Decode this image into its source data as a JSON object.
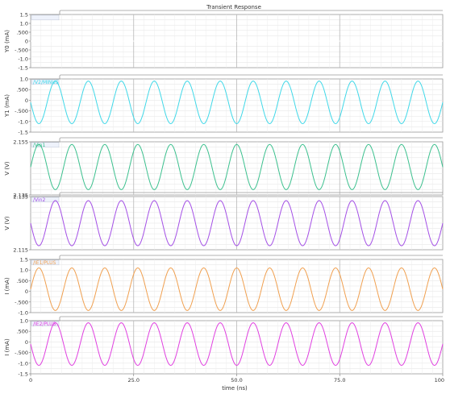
{
  "chart_data": {
    "type": "line",
    "title": "Transient Response",
    "xlabel": "time (ns)",
    "xlim": [
      0,
      100
    ],
    "xticks": [
      "0",
      "25.0",
      "50.0",
      "75.0",
      "100"
    ],
    "grid": true,
    "panels": [
      {
        "ylabel": "Y0 (mA)",
        "legend": "",
        "color": "#ffffff",
        "ylim": [
          -1.5,
          1.5
        ],
        "yticks": [
          "1.5",
          "1.0",
          ".500",
          "0",
          "-.500",
          "-1.0",
          "-1.5"
        ],
        "series": {
          "kind": "flat",
          "value": 0
        }
      },
      {
        "ylabel": "Y1 (mA)",
        "legend": "/V2/MINUS",
        "color": "#40d8e8",
        "ylim": [
          -1.5,
          1.0
        ],
        "yticks": [
          "1.0",
          ".500",
          "0",
          "-.500",
          "-1.0",
          "-1.5"
        ],
        "series": {
          "kind": "sine",
          "amplitude": 1.0,
          "offset": -0.1,
          "period_ns": 8.0,
          "phase_deg": 180
        }
      },
      {
        "ylabel": "V (V)",
        "legend": "/Vin1",
        "color": "#3cc08e",
        "ylim": [
          2.135,
          2.155
        ],
        "yticks": [
          "2.155",
          "2.135"
        ],
        "series": {
          "kind": "sine",
          "amplitude": 0.0085,
          "offset": 2.1455,
          "period_ns": 8.0,
          "phase_deg": 0
        }
      },
      {
        "ylabel": "V (V)",
        "legend": "/Vin2",
        "color": "#a450e6",
        "ylim": [
          2.115,
          2.135
        ],
        "yticks": [
          "2.135",
          "2.115"
        ],
        "series": {
          "kind": "sine",
          "amplitude": 0.0085,
          "offset": 2.125,
          "period_ns": 8.0,
          "phase_deg": 180
        }
      },
      {
        "ylabel": "I (mA)",
        "legend": "/IE1/PLUS",
        "color": "#f0a050",
        "ylim": [
          -1.0,
          1.5
        ],
        "yticks": [
          "1.5",
          "1.0",
          ".500",
          "0",
          "-.500",
          "-1.0"
        ],
        "series": {
          "kind": "sine",
          "amplitude": 1.0,
          "offset": 0.1,
          "period_ns": 8.0,
          "phase_deg": 0
        }
      },
      {
        "ylabel": "I (mA)",
        "legend": "/IE2/PLUS",
        "color": "#e040e0",
        "ylim": [
          -1.5,
          1.0
        ],
        "yticks": [
          "1.0",
          ".500",
          "0",
          "-.500",
          "-1.0",
          "-1.5"
        ],
        "series": {
          "kind": "sine",
          "amplitude": 1.0,
          "offset": -0.1,
          "period_ns": 8.0,
          "phase_deg": 180
        }
      }
    ]
  }
}
